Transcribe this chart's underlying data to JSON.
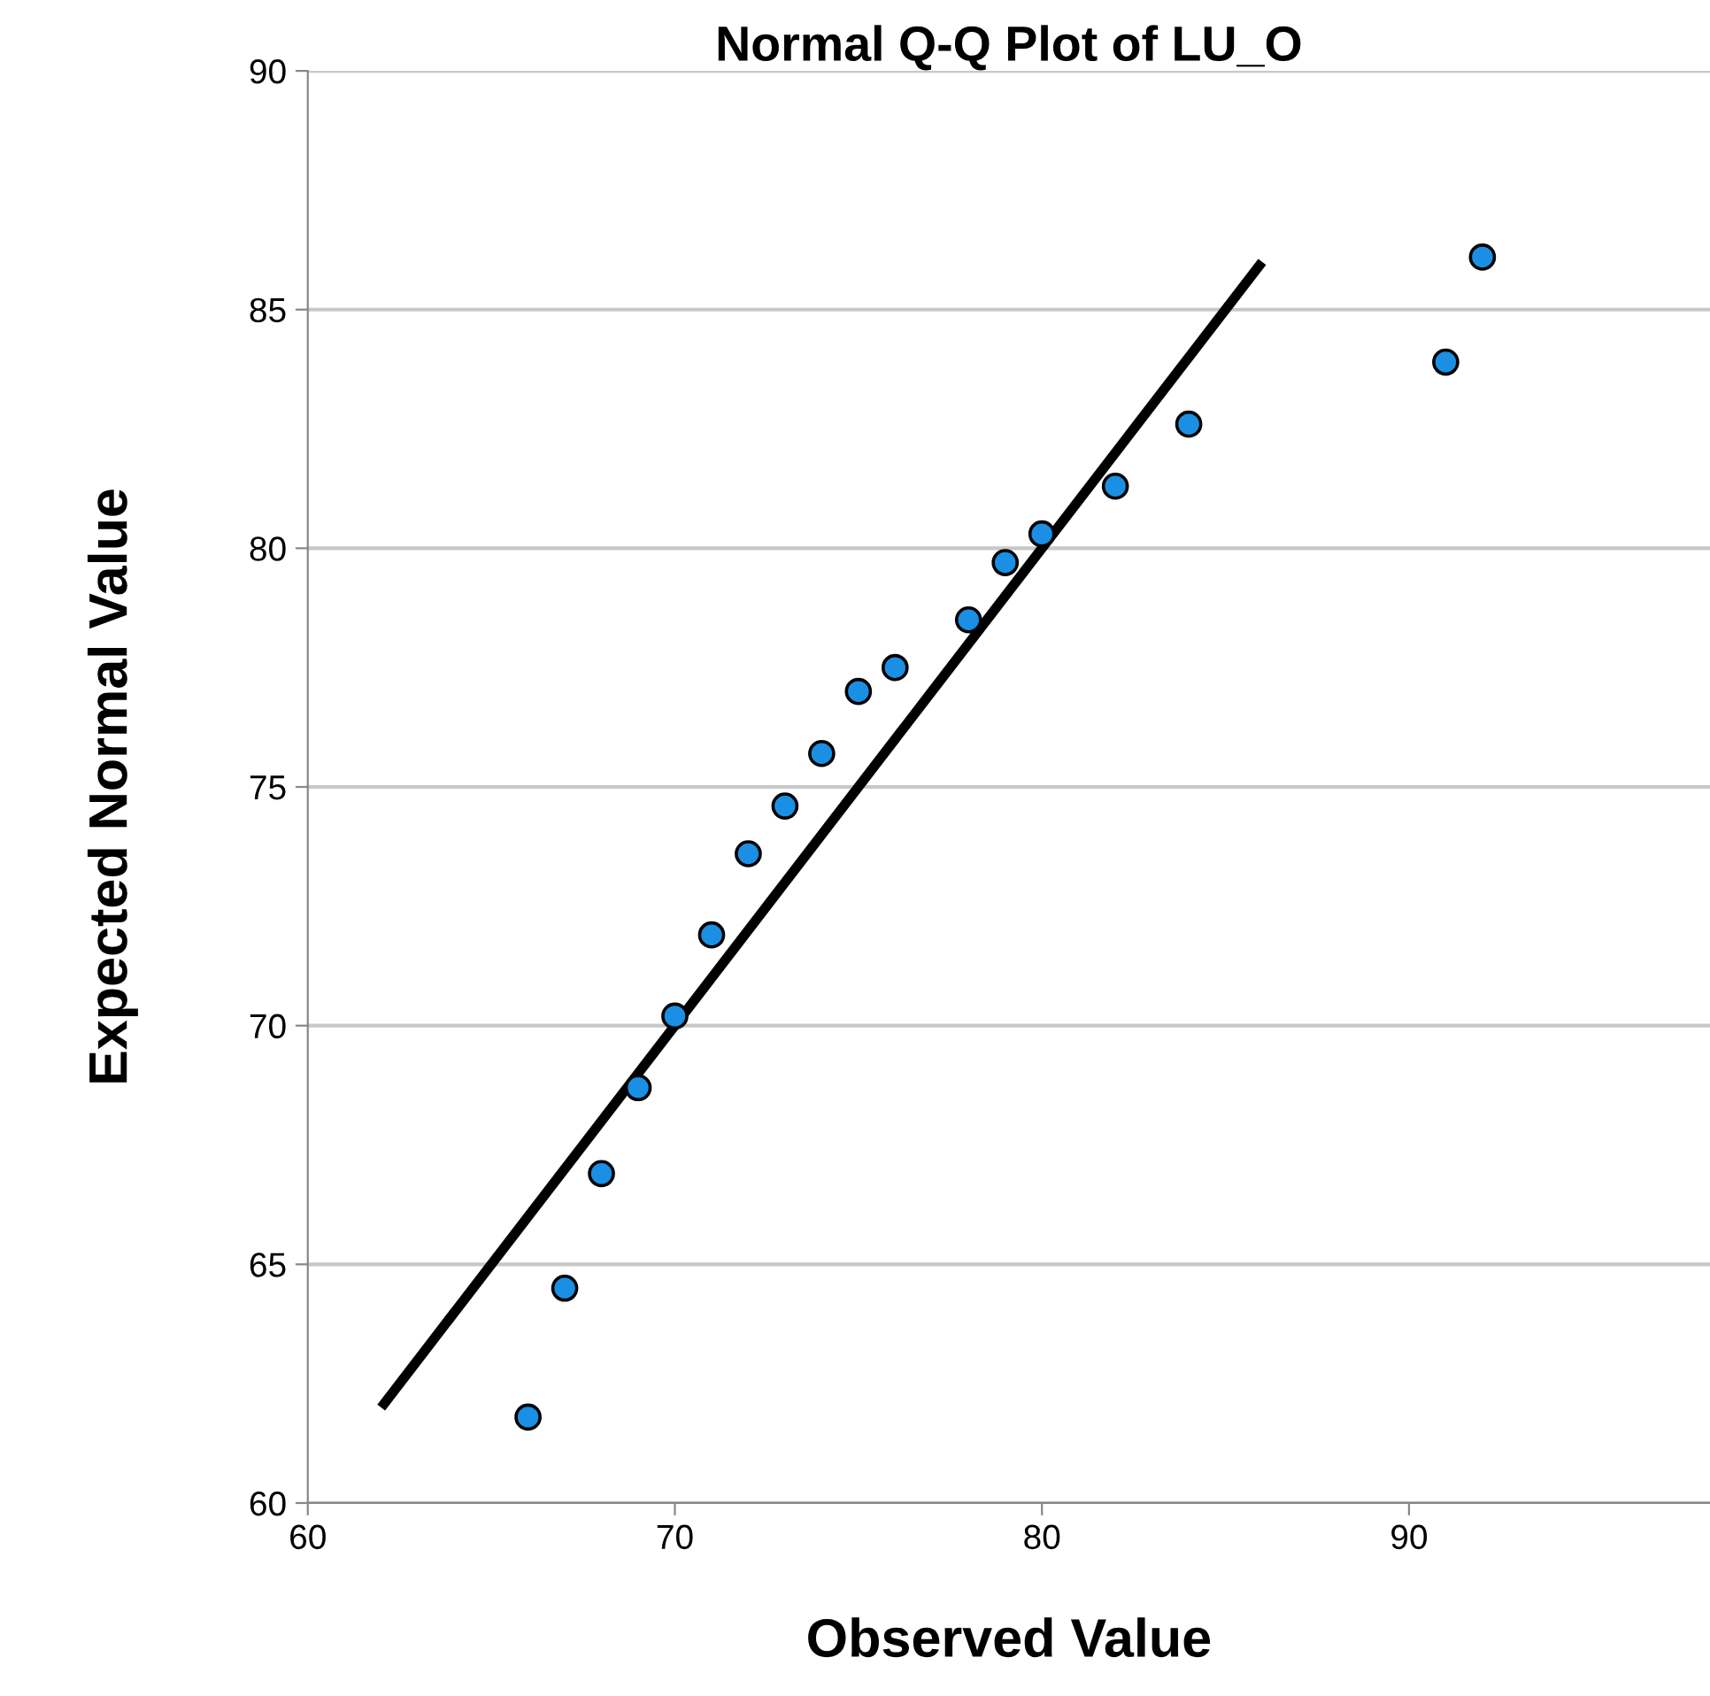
{
  "chart_data": {
    "type": "scatter",
    "title": "Normal Q-Q Plot of LU_O",
    "xlabel": "Observed Value",
    "ylabel": "Expected Normal Value",
    "xlim": [
      60,
      98.2
    ],
    "ylim": [
      60,
      90
    ],
    "xticks": [
      60,
      70,
      80,
      90
    ],
    "yticks": [
      60,
      65,
      70,
      75,
      80,
      85,
      90
    ],
    "grid": "y",
    "series": [
      {
        "marker": "circle",
        "color": "#1a8fe3",
        "x": [
          66,
          67,
          68,
          69,
          70,
          71,
          72,
          73,
          74,
          75,
          76,
          78,
          79,
          80,
          82,
          84,
          91,
          92
        ],
        "values": [
          61.8,
          64.5,
          66.9,
          68.7,
          70.2,
          71.9,
          73.6,
          74.6,
          75.7,
          77.0,
          77.5,
          78.5,
          79.7,
          80.3,
          81.3,
          82.6,
          83.9,
          86.1
        ]
      },
      {
        "type": "line",
        "marker": "none",
        "color": "#000000",
        "x": [
          62,
          86
        ],
        "values": [
          62,
          86
        ]
      }
    ]
  }
}
